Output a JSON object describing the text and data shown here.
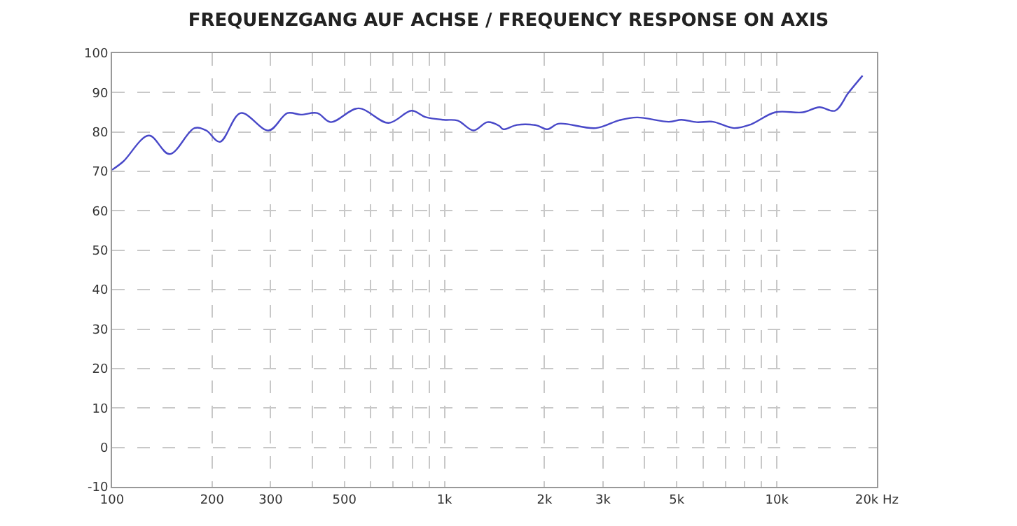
{
  "chart_data": {
    "type": "line",
    "title": "FREQUENZGANG AUF ACHSE / FREQUENCY RESPONSE ON AXIS",
    "x": [
      100,
      108,
      129,
      149,
      177,
      192,
      211,
      244,
      296,
      337,
      370,
      414,
      455,
      551,
      679,
      796,
      877,
      995,
      1096,
      1224,
      1346,
      1459,
      1503,
      1652,
      1888,
      2042,
      2203,
      2853,
      3359,
      3800,
      4732,
      5164,
      5741,
      6427,
      7430,
      8335,
      9890,
      11990,
      13430,
      14960,
      16440,
      18110
    ],
    "series": [
      {
        "color": "#4848c8",
        "values": [
          70.4,
          72.5,
          79.1,
          74.4,
          81,
          80.4,
          77.5,
          84.8,
          80.4,
          84.8,
          84.4,
          84.8,
          82.5,
          86,
          82.3,
          85.4,
          83.8,
          83.1,
          82.9,
          80.4,
          82.5,
          81.6,
          80.7,
          81.8,
          81.7,
          80.7,
          82.1,
          81,
          83,
          83.7,
          82.6,
          83.1,
          82.5,
          82.6,
          81,
          81.9,
          85,
          85,
          86.3,
          85.4,
          90,
          94.3
        ]
      }
    ],
    "log": "x",
    "xlim": [
      100,
      20000
    ],
    "xticks": [
      100,
      200,
      300,
      {
        "value": 400,
        "label": null
      },
      500,
      {
        "value": 600,
        "label": null
      },
      {
        "value": 700,
        "label": null
      },
      {
        "value": 800,
        "label": null
      },
      {
        "value": 900,
        "label": null
      },
      {
        "value": 1000,
        "label": "1k"
      },
      {
        "value": 2000,
        "label": "2k"
      },
      {
        "value": 3000,
        "label": "3k"
      },
      {
        "value": 4000,
        "label": null
      },
      {
        "value": 5000,
        "label": "5k"
      },
      {
        "value": 6000,
        "label": null
      },
      {
        "value": 7000,
        "label": null
      },
      {
        "value": 8000,
        "label": null
      },
      {
        "value": 9000,
        "label": null
      },
      {
        "value": 10000,
        "label": "10k"
      },
      {
        "value": 20000,
        "label": "20k Hz"
      }
    ],
    "ylim": [
      -10,
      100
    ],
    "yticks": [
      -10,
      0,
      10,
      20,
      30,
      40,
      50,
      60,
      70,
      80,
      90,
      100
    ],
    "grid": true,
    "marker": "none",
    "line_style": "solid"
  }
}
